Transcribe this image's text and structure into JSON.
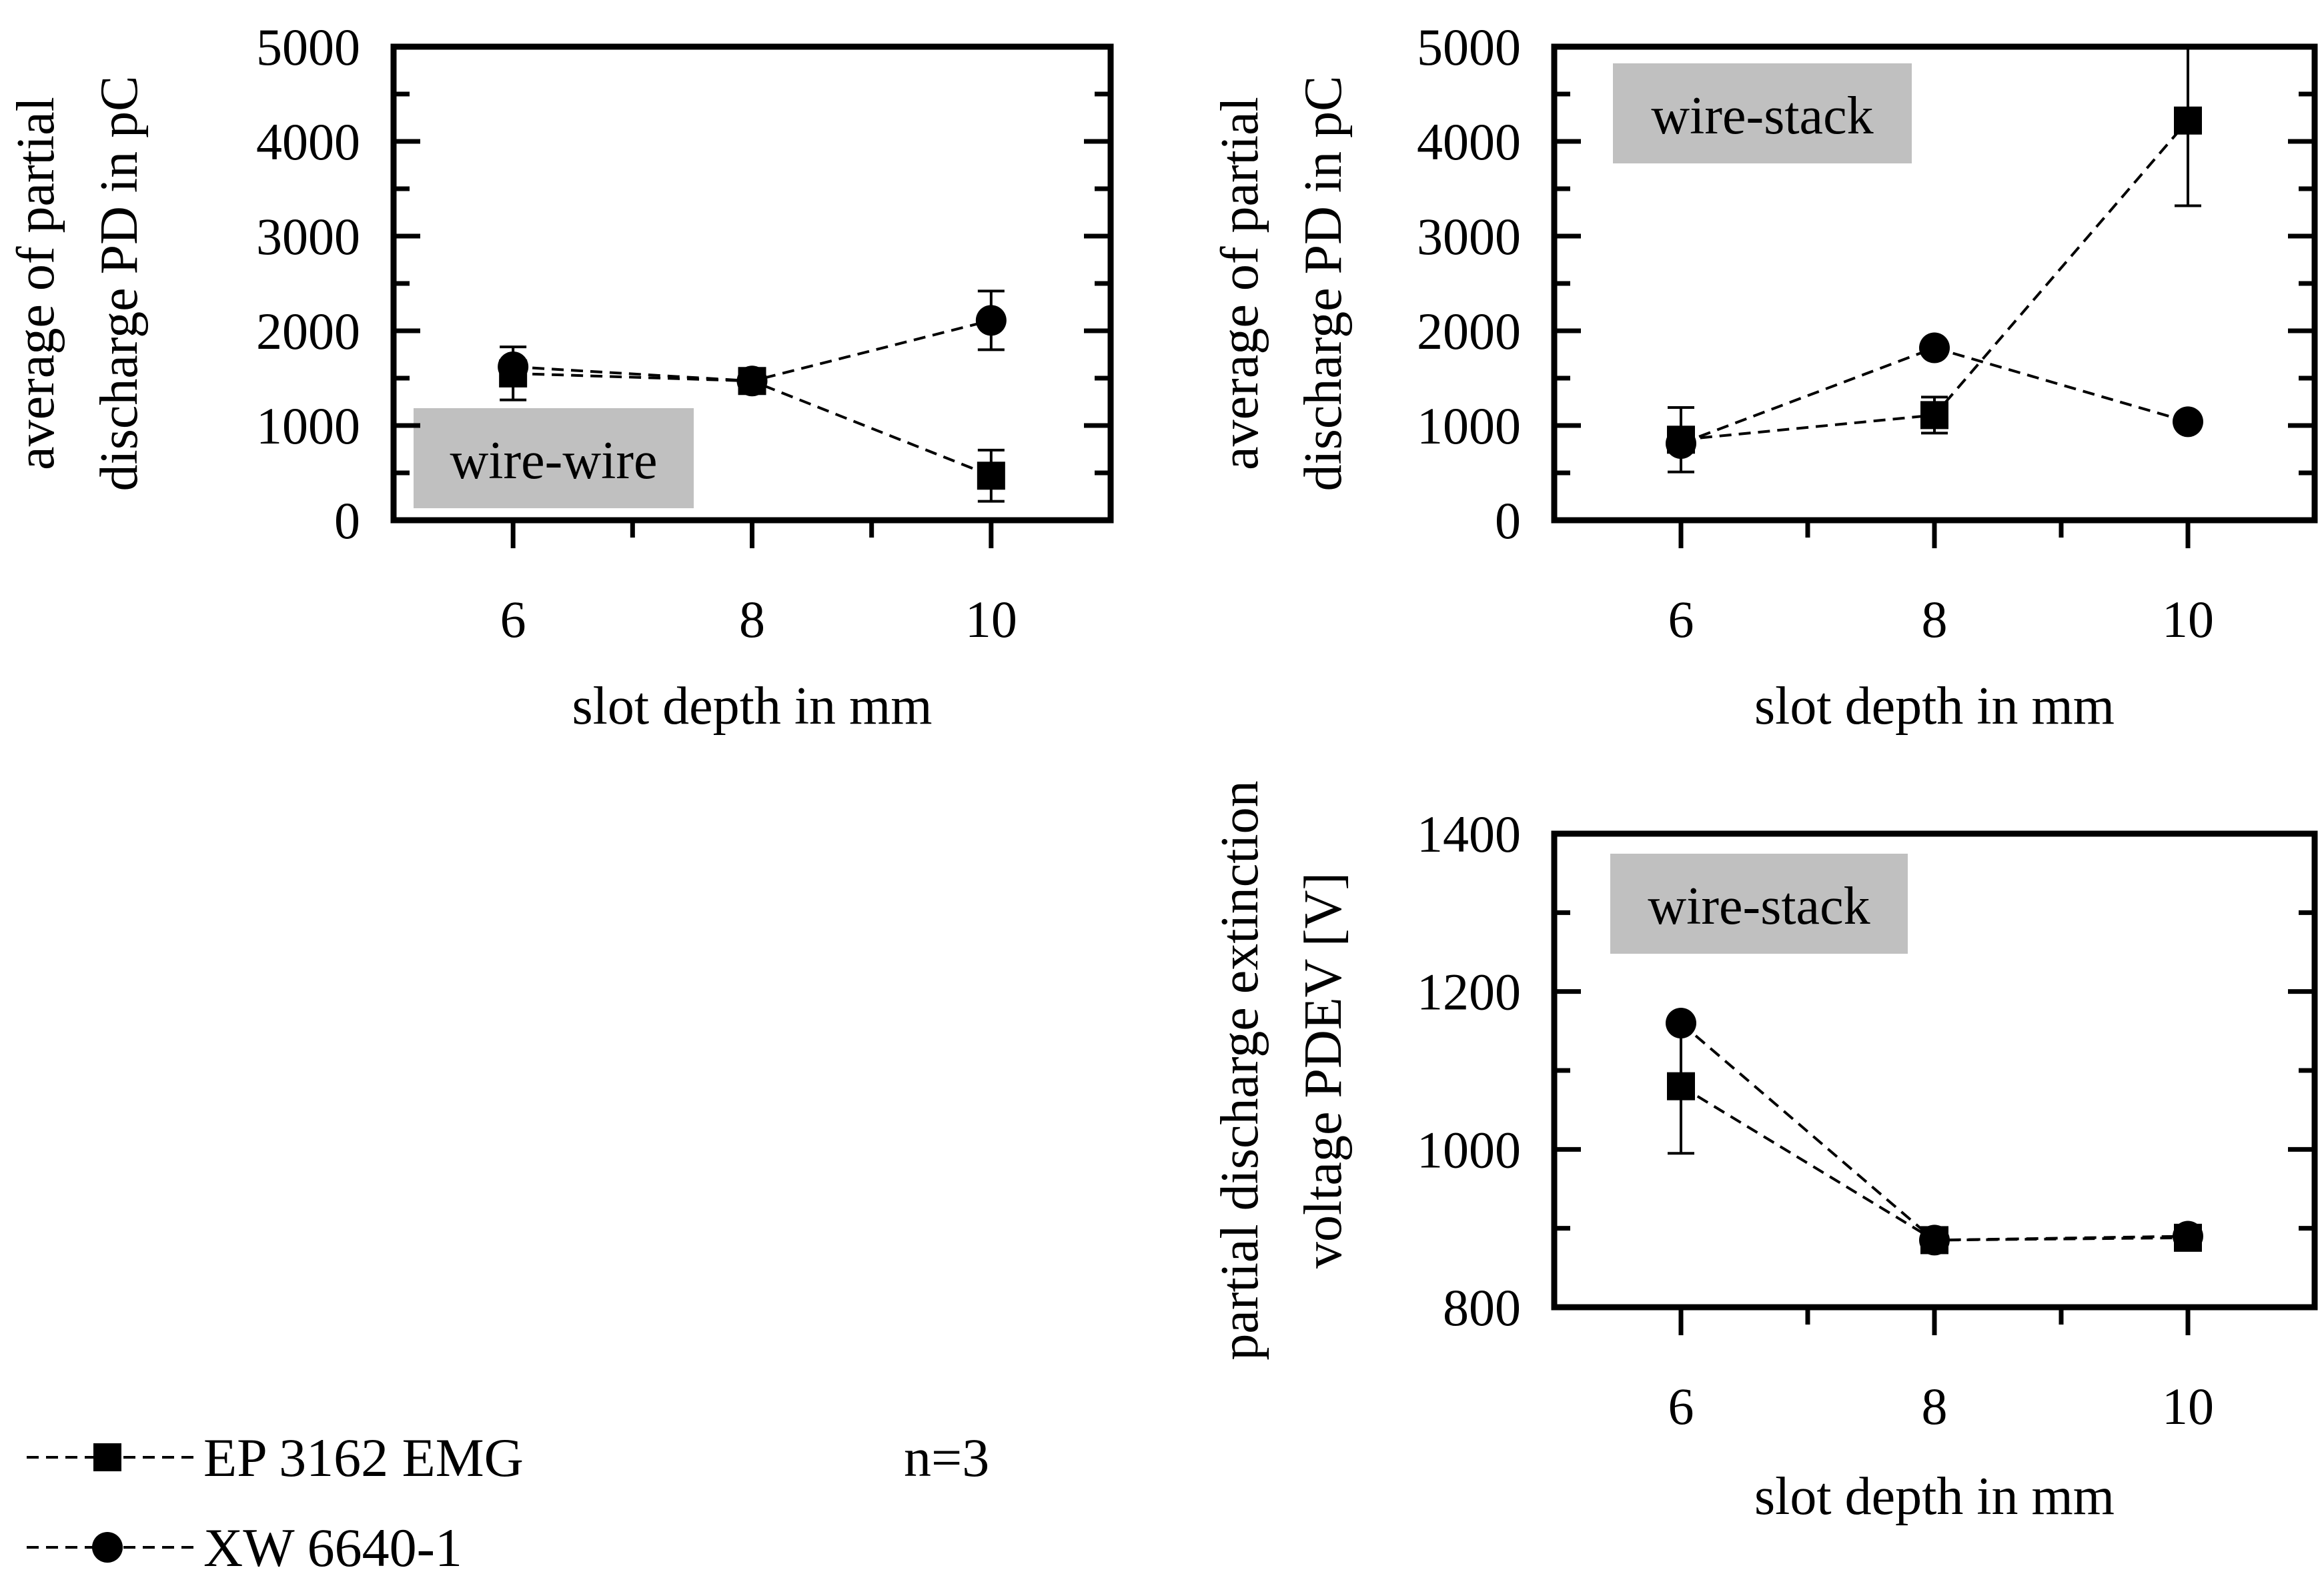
{
  "legend": {
    "entries": [
      {
        "name": "EP 3162 EMG",
        "marker": "square"
      },
      {
        "name": "XW 6640-1",
        "marker": "circle"
      }
    ],
    "sample_note": "n=3"
  },
  "chart_data": [
    {
      "type": "line",
      "panel_label": "wire-wire",
      "xlabel": "slot depth in mm",
      "ylabel_lines": [
        "average of partial",
        "discharge PD in pC"
      ],
      "xlim": [
        5,
        11
      ],
      "ylim": [
        0,
        5000
      ],
      "xticks": [
        6,
        8,
        10
      ],
      "yticks": [
        0,
        1000,
        2000,
        3000,
        4000,
        5000
      ],
      "series": [
        {
          "name": "EP 3162 EMG",
          "marker": "square",
          "x": [
            6,
            8,
            10
          ],
          "y": [
            1550,
            1470,
            470
          ],
          "err": [
            280,
            0,
            270
          ]
        },
        {
          "name": "XW 6640-1",
          "marker": "circle",
          "x": [
            6,
            8,
            10
          ],
          "y": [
            1620,
            1470,
            2110
          ],
          "err": [
            0,
            0,
            310
          ]
        }
      ]
    },
    {
      "type": "line",
      "panel_label": "wire-stack",
      "xlabel": "slot depth in mm",
      "ylabel_lines": [
        "average of partial",
        "discharge PD in pC"
      ],
      "xlim": [
        5,
        11
      ],
      "ylim": [
        0,
        5000
      ],
      "xticks": [
        6,
        8,
        10
      ],
      "yticks": [
        0,
        1000,
        2000,
        3000,
        4000,
        5000
      ],
      "series": [
        {
          "name": "EP 3162 EMG",
          "marker": "square",
          "x": [
            6,
            8,
            10
          ],
          "y": [
            850,
            1110,
            4220
          ],
          "err": [
            340,
            190,
            900
          ]
        },
        {
          "name": "XW 6640-1",
          "marker": "circle",
          "x": [
            6,
            8,
            10
          ],
          "y": [
            810,
            1820,
            1040
          ],
          "err": [
            0,
            0,
            0
          ]
        }
      ]
    },
    {
      "type": "line",
      "panel_label": "wire-stack",
      "xlabel": "slot depth in mm",
      "ylabel_lines": [
        "partial discharge extinction",
        "voltage PDEV [V]"
      ],
      "xlim": [
        5,
        11
      ],
      "ylim": [
        800,
        1400
      ],
      "xticks": [
        6,
        8,
        10
      ],
      "yticks": [
        800,
        1000,
        1200,
        1400
      ],
      "series": [
        {
          "name": "EP 3162 EMG",
          "marker": "square",
          "x": [
            6,
            8,
            10
          ],
          "y": [
            1080,
            885,
            888
          ],
          "err": [
            85,
            0,
            0
          ]
        },
        {
          "name": "XW 6640-1",
          "marker": "circle",
          "x": [
            6,
            8,
            10
          ],
          "y": [
            1160,
            885,
            890
          ],
          "err": [
            0,
            0,
            0
          ]
        }
      ]
    }
  ]
}
